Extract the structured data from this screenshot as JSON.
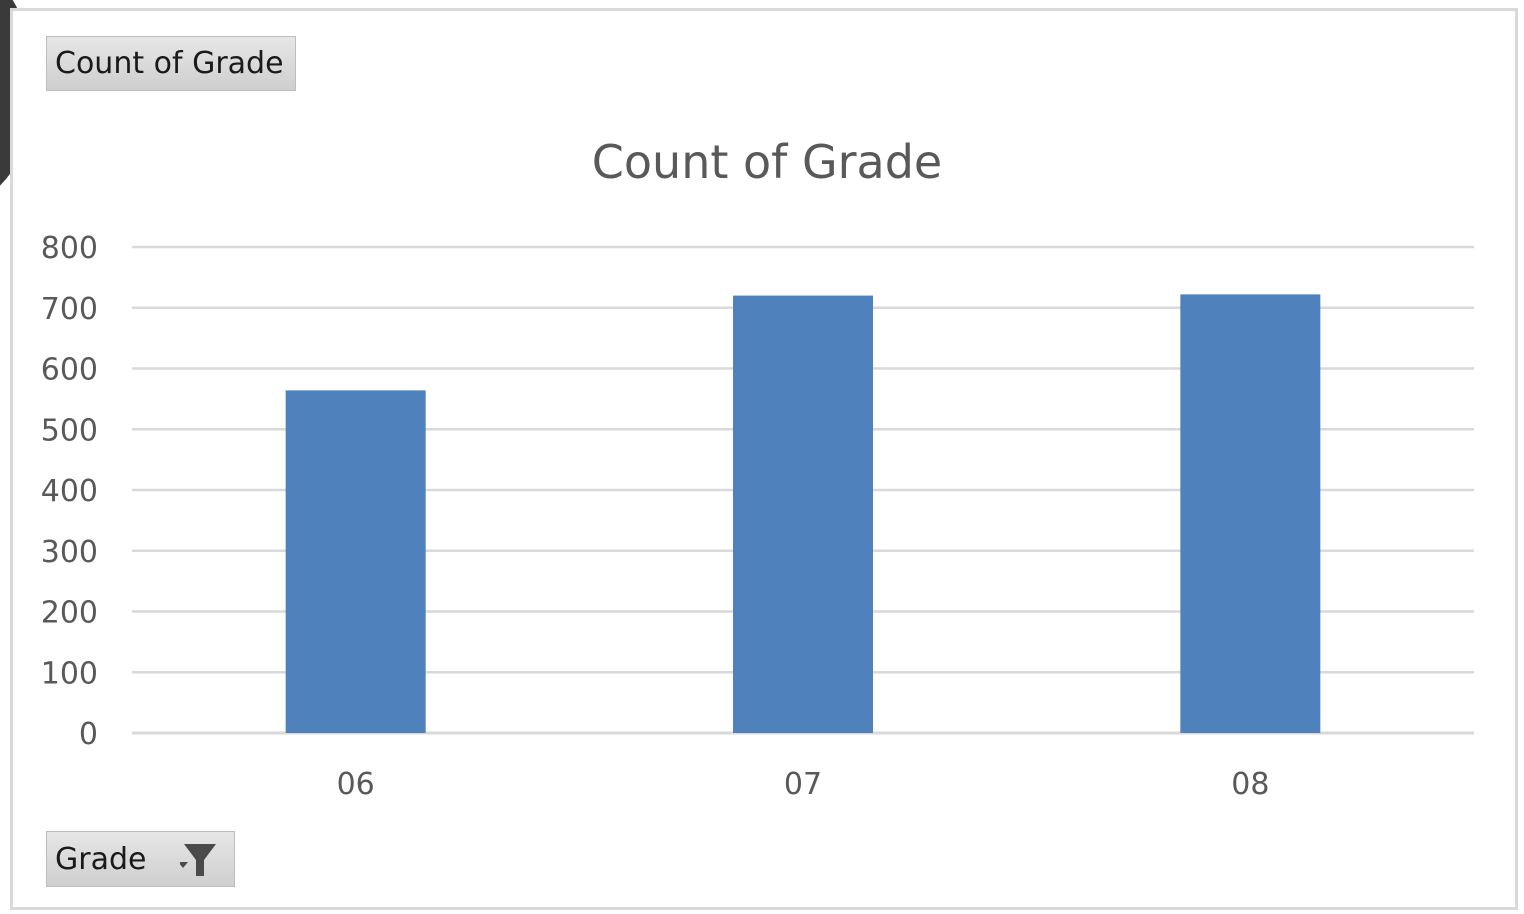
{
  "value_field_button": "Count of Grade",
  "axis_field_button": "Grade",
  "chart_data": {
    "type": "bar",
    "title": "Count of Grade",
    "categories": [
      "06",
      "07",
      "08"
    ],
    "values": [
      564,
      720,
      722
    ],
    "ylim": [
      0,
      800
    ],
    "yticks": [
      0,
      100,
      200,
      300,
      400,
      500,
      600,
      700,
      800
    ],
    "grid": true,
    "bar_color": "#4f81bd"
  }
}
